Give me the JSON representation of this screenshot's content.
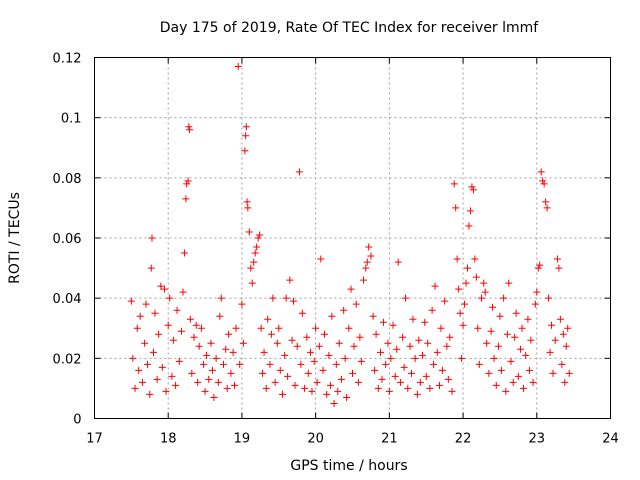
{
  "chart_data": {
    "type": "scatter",
    "title": "Day 175 of 2019, Rate Of TEC Index for receiver lmmf",
    "xlabel": "GPS time / hours",
    "ylabel": "ROTI / TECUs",
    "xlim": [
      17,
      24
    ],
    "ylim": [
      0,
      0.12
    ],
    "xticks": [
      17,
      18,
      19,
      20,
      21,
      22,
      23,
      24
    ],
    "xtick_labels": [
      "17",
      "18",
      "19",
      "20",
      "21",
      "22",
      "23",
      "24"
    ],
    "yticks": [
      0,
      0.02,
      0.04,
      0.06,
      0.08,
      0.1,
      0.12
    ],
    "ytick_labels": [
      "0",
      "0.02",
      "0.04",
      "0.06",
      "0.08",
      "0.1",
      "0.12"
    ],
    "grid": true,
    "marker": "plus",
    "color": "#ff0000",
    "series": [
      {
        "name": "ROTI",
        "points": [
          [
            17.5,
            0.039
          ],
          [
            17.52,
            0.02
          ],
          [
            17.55,
            0.01
          ],
          [
            17.58,
            0.03
          ],
          [
            17.6,
            0.016
          ],
          [
            17.62,
            0.034
          ],
          [
            17.65,
            0.012
          ],
          [
            17.68,
            0.025
          ],
          [
            17.7,
            0.038
          ],
          [
            17.72,
            0.018
          ],
          [
            17.75,
            0.008
          ],
          [
            17.77,
            0.05
          ],
          [
            17.78,
            0.06
          ],
          [
            17.8,
            0.022
          ],
          [
            17.82,
            0.035
          ],
          [
            17.85,
            0.013
          ],
          [
            17.87,
            0.028
          ],
          [
            17.9,
            0.044
          ],
          [
            17.92,
            0.017
          ],
          [
            17.95,
            0.043
          ],
          [
            17.97,
            0.009
          ],
          [
            18.0,
            0.031
          ],
          [
            18.02,
            0.04
          ],
          [
            18.05,
            0.014
          ],
          [
            18.07,
            0.026
          ],
          [
            18.1,
            0.011
          ],
          [
            18.12,
            0.036
          ],
          [
            18.15,
            0.019
          ],
          [
            18.18,
            0.029
          ],
          [
            18.2,
            0.042
          ],
          [
            18.22,
            0.055
          ],
          [
            18.24,
            0.073
          ],
          [
            18.25,
            0.078
          ],
          [
            18.27,
            0.079
          ],
          [
            18.28,
            0.097
          ],
          [
            18.29,
            0.096
          ],
          [
            18.3,
            0.033
          ],
          [
            18.32,
            0.015
          ],
          [
            18.35,
            0.027
          ],
          [
            18.38,
            0.031
          ],
          [
            18.4,
            0.012
          ],
          [
            18.42,
            0.024
          ],
          [
            18.45,
            0.03
          ],
          [
            18.48,
            0.018
          ],
          [
            18.5,
            0.009
          ],
          [
            18.52,
            0.021
          ],
          [
            18.55,
            0.013
          ],
          [
            18.58,
            0.025
          ],
          [
            18.6,
            0.016
          ],
          [
            18.62,
            0.007
          ],
          [
            18.65,
            0.02
          ],
          [
            18.68,
            0.012
          ],
          [
            18.7,
            0.034
          ],
          [
            18.72,
            0.04
          ],
          [
            18.75,
            0.018
          ],
          [
            18.78,
            0.023
          ],
          [
            18.8,
            0.01
          ],
          [
            18.82,
            0.028
          ],
          [
            18.85,
            0.015
          ],
          [
            18.88,
            0.022
          ],
          [
            18.9,
            0.011
          ],
          [
            18.92,
            0.03
          ],
          [
            18.95,
            0.117
          ],
          [
            18.97,
            0.018
          ],
          [
            19.0,
            0.038
          ],
          [
            19.02,
            0.025
          ],
          [
            19.04,
            0.089
          ],
          [
            19.05,
            0.094
          ],
          [
            19.06,
            0.097
          ],
          [
            19.07,
            0.072
          ],
          [
            19.08,
            0.07
          ],
          [
            19.1,
            0.062
          ],
          [
            19.12,
            0.05
          ],
          [
            19.14,
            0.045
          ],
          [
            19.16,
            0.052
          ],
          [
            19.18,
            0.055
          ],
          [
            19.2,
            0.057
          ],
          [
            19.22,
            0.06
          ],
          [
            19.24,
            0.061
          ],
          [
            19.26,
            0.03
          ],
          [
            19.28,
            0.015
          ],
          [
            19.3,
            0.022
          ],
          [
            19.33,
            0.01
          ],
          [
            19.35,
            0.033
          ],
          [
            19.38,
            0.018
          ],
          [
            19.4,
            0.028
          ],
          [
            19.42,
            0.04
          ],
          [
            19.45,
            0.012
          ],
          [
            19.48,
            0.025
          ],
          [
            19.5,
            0.03
          ],
          [
            19.52,
            0.016
          ],
          [
            19.55,
            0.008
          ],
          [
            19.58,
            0.021
          ],
          [
            19.6,
            0.04
          ],
          [
            19.62,
            0.014
          ],
          [
            19.65,
            0.046
          ],
          [
            19.68,
            0.026
          ],
          [
            19.7,
            0.039
          ],
          [
            19.72,
            0.011
          ],
          [
            19.75,
            0.024
          ],
          [
            19.78,
            0.082
          ],
          [
            19.8,
            0.018
          ],
          [
            19.82,
            0.035
          ],
          [
            19.85,
            0.01
          ],
          [
            19.88,
            0.027
          ],
          [
            19.9,
            0.015
          ],
          [
            19.93,
            0.022
          ],
          [
            19.95,
            0.009
          ],
          [
            19.98,
            0.019
          ],
          [
            20.0,
            0.03
          ],
          [
            20.02,
            0.012
          ],
          [
            20.05,
            0.024
          ],
          [
            20.07,
            0.053
          ],
          [
            20.1,
            0.016
          ],
          [
            20.12,
            0.028
          ],
          [
            20.15,
            0.008
          ],
          [
            20.18,
            0.021
          ],
          [
            20.2,
            0.011
          ],
          [
            20.22,
            0.034
          ],
          [
            20.25,
            0.005
          ],
          [
            20.28,
            0.018
          ],
          [
            20.3,
            0.009
          ],
          [
            20.32,
            0.025
          ],
          [
            20.35,
            0.013
          ],
          [
            20.38,
            0.036
          ],
          [
            20.4,
            0.02
          ],
          [
            20.42,
            0.007
          ],
          [
            20.45,
            0.03
          ],
          [
            20.48,
            0.043
          ],
          [
            20.5,
            0.015
          ],
          [
            20.52,
            0.024
          ],
          [
            20.55,
            0.038
          ],
          [
            20.58,
            0.012
          ],
          [
            20.6,
            0.027
          ],
          [
            20.62,
            0.019
          ],
          [
            20.65,
            0.046
          ],
          [
            20.68,
            0.05
          ],
          [
            20.7,
            0.052
          ],
          [
            20.72,
            0.057
          ],
          [
            20.75,
            0.054
          ],
          [
            20.78,
            0.034
          ],
          [
            20.8,
            0.016
          ],
          [
            20.82,
            0.028
          ],
          [
            20.85,
            0.01
          ],
          [
            20.88,
            0.022
          ],
          [
            20.9,
            0.013
          ],
          [
            20.92,
            0.032
          ],
          [
            20.95,
            0.018
          ],
          [
            20.98,
            0.025
          ],
          [
            21.0,
            0.009
          ],
          [
            21.02,
            0.02
          ],
          [
            21.05,
            0.031
          ],
          [
            21.08,
            0.014
          ],
          [
            21.1,
            0.023
          ],
          [
            21.12,
            0.052
          ],
          [
            21.15,
            0.012
          ],
          [
            21.18,
            0.027
          ],
          [
            21.2,
            0.017
          ],
          [
            21.22,
            0.04
          ],
          [
            21.25,
            0.01
          ],
          [
            21.28,
            0.024
          ],
          [
            21.3,
            0.015
          ],
          [
            21.32,
            0.033
          ],
          [
            21.35,
            0.02
          ],
          [
            21.38,
            0.008
          ],
          [
            21.4,
            0.026
          ],
          [
            21.42,
            0.012
          ],
          [
            21.45,
            0.021
          ],
          [
            21.48,
            0.032
          ],
          [
            21.5,
            0.014
          ],
          [
            21.52,
            0.025
          ],
          [
            21.55,
            0.01
          ],
          [
            21.58,
            0.036
          ],
          [
            21.6,
            0.018
          ],
          [
            21.62,
            0.044
          ],
          [
            21.65,
            0.022
          ],
          [
            21.68,
            0.011
          ],
          [
            21.7,
            0.03
          ],
          [
            21.72,
            0.016
          ],
          [
            21.75,
            0.039
          ],
          [
            21.78,
            0.024
          ],
          [
            21.8,
            0.013
          ],
          [
            21.82,
            0.027
          ],
          [
            21.85,
            0.009
          ],
          [
            21.88,
            0.078
          ],
          [
            21.9,
            0.07
          ],
          [
            21.92,
            0.053
          ],
          [
            21.94,
            0.043
          ],
          [
            21.96,
            0.035
          ],
          [
            21.98,
            0.02
          ],
          [
            22.0,
            0.031
          ],
          [
            22.02,
            0.038
          ],
          [
            22.04,
            0.045
          ],
          [
            22.06,
            0.05
          ],
          [
            22.08,
            0.064
          ],
          [
            22.1,
            0.069
          ],
          [
            22.12,
            0.077
          ],
          [
            22.14,
            0.076
          ],
          [
            22.16,
            0.053
          ],
          [
            22.18,
            0.047
          ],
          [
            22.2,
            0.03
          ],
          [
            22.22,
            0.018
          ],
          [
            22.25,
            0.04
          ],
          [
            22.28,
            0.045
          ],
          [
            22.3,
            0.042
          ],
          [
            22.32,
            0.025
          ],
          [
            22.35,
            0.015
          ],
          [
            22.38,
            0.029
          ],
          [
            22.4,
            0.037
          ],
          [
            22.42,
            0.02
          ],
          [
            22.45,
            0.011
          ],
          [
            22.48,
            0.024
          ],
          [
            22.5,
            0.034
          ],
          [
            22.52,
            0.016
          ],
          [
            22.55,
            0.04
          ],
          [
            22.58,
            0.009
          ],
          [
            22.6,
            0.028
          ],
          [
            22.62,
            0.045
          ],
          [
            22.65,
            0.019
          ],
          [
            22.68,
            0.012
          ],
          [
            22.7,
            0.027
          ],
          [
            22.72,
            0.035
          ],
          [
            22.75,
            0.014
          ],
          [
            22.78,
            0.023
          ],
          [
            22.8,
            0.03
          ],
          [
            22.82,
            0.01
          ],
          [
            22.85,
            0.021
          ],
          [
            22.88,
            0.033
          ],
          [
            22.9,
            0.016
          ],
          [
            22.92,
            0.026
          ],
          [
            22.95,
            0.012
          ],
          [
            22.98,
            0.038
          ],
          [
            23.0,
            0.042
          ],
          [
            23.02,
            0.05
          ],
          [
            23.04,
            0.051
          ],
          [
            23.06,
            0.082
          ],
          [
            23.08,
            0.079
          ],
          [
            23.1,
            0.078
          ],
          [
            23.12,
            0.072
          ],
          [
            23.14,
            0.07
          ],
          [
            23.16,
            0.04
          ],
          [
            23.18,
            0.022
          ],
          [
            23.2,
            0.031
          ],
          [
            23.22,
            0.015
          ],
          [
            23.25,
            0.026
          ],
          [
            23.28,
            0.053
          ],
          [
            23.3,
            0.05
          ],
          [
            23.32,
            0.033
          ],
          [
            23.34,
            0.018
          ],
          [
            23.36,
            0.028
          ],
          [
            23.38,
            0.012
          ],
          [
            23.4,
            0.024
          ],
          [
            23.42,
            0.03
          ],
          [
            23.44,
            0.015
          ]
        ]
      }
    ]
  }
}
